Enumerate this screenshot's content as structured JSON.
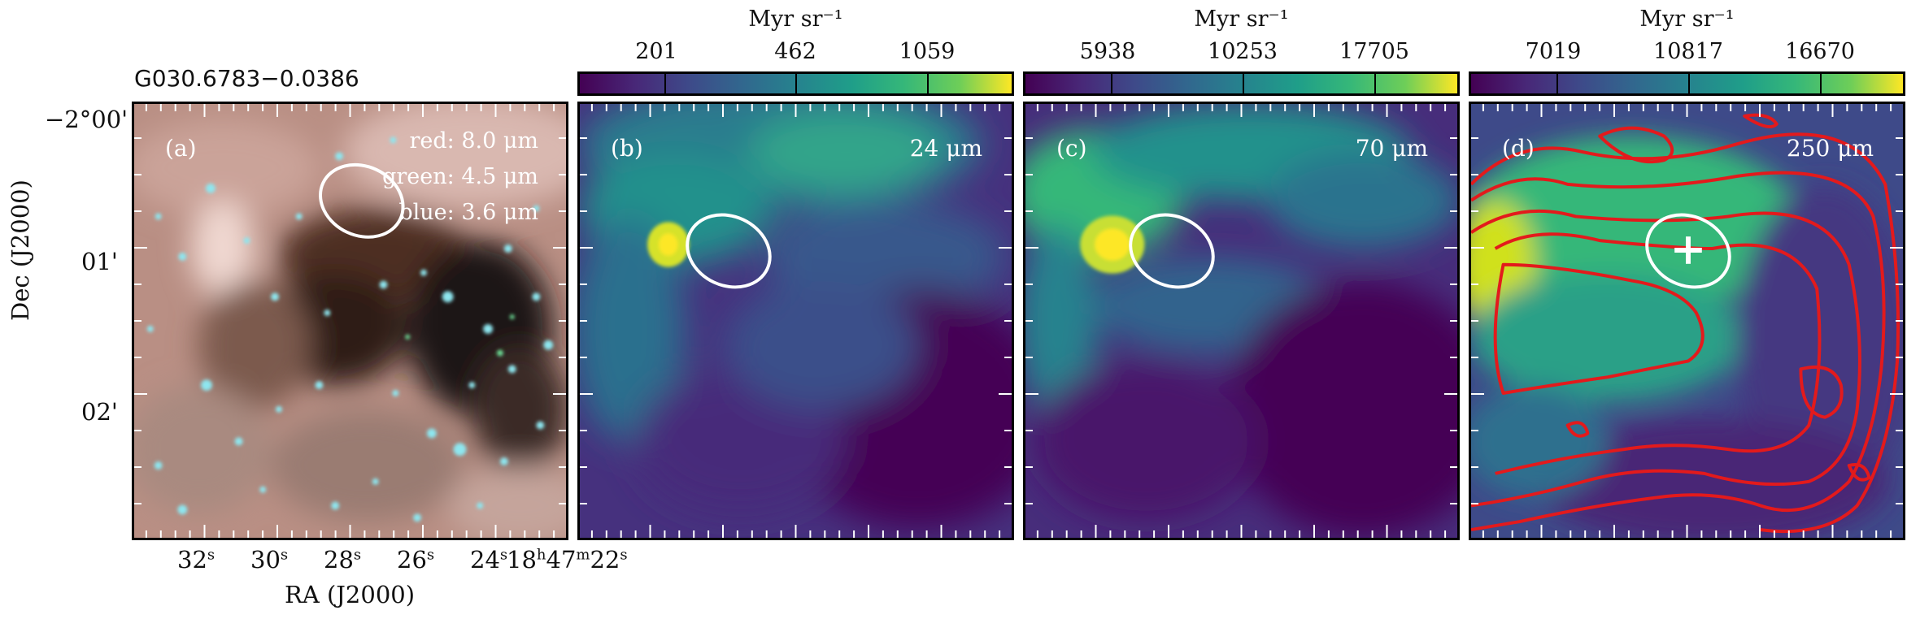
{
  "source_name": "G030.6783−0.0386",
  "axes": {
    "xlabel": "RA (J2000)",
    "ylabel": "Dec (J2000)",
    "ra_ticks": [
      "32",
      "30",
      "28",
      "26",
      "24",
      "18",
      "47",
      "22"
    ],
    "ra_units": {
      "s": "s",
      "h": "h",
      "m": "m"
    },
    "dec_ticks": [
      "−2°00'",
      "01'",
      "02'"
    ]
  },
  "panels": [
    {
      "id": "a",
      "label": "(a)",
      "channels": [
        "red: 8.0 μm",
        "green: 4.5 μm",
        "blue: 3.6 μm"
      ]
    },
    {
      "id": "b",
      "label": "(b)",
      "wavelength": "24 μm",
      "colorbar": {
        "unit": "Myr sr⁻¹",
        "ticks": [
          "201",
          "462",
          "1059"
        ]
      }
    },
    {
      "id": "c",
      "label": "(c)",
      "wavelength": "70 μm",
      "colorbar": {
        "unit": "Myr sr⁻¹",
        "ticks": [
          "5938",
          "10253",
          "17705"
        ]
      }
    },
    {
      "id": "d",
      "label": "(d)",
      "wavelength": "250 μm",
      "colorbar": {
        "unit": "Myr sr⁻¹",
        "ticks": [
          "7019",
          "10817",
          "16670"
        ]
      }
    }
  ],
  "colors": {
    "viridis_low": "#440154",
    "viridis_mid": "#21918c",
    "viridis_high": "#fde725",
    "contour": "#e31a1c",
    "ellipse": "#ffffff"
  }
}
